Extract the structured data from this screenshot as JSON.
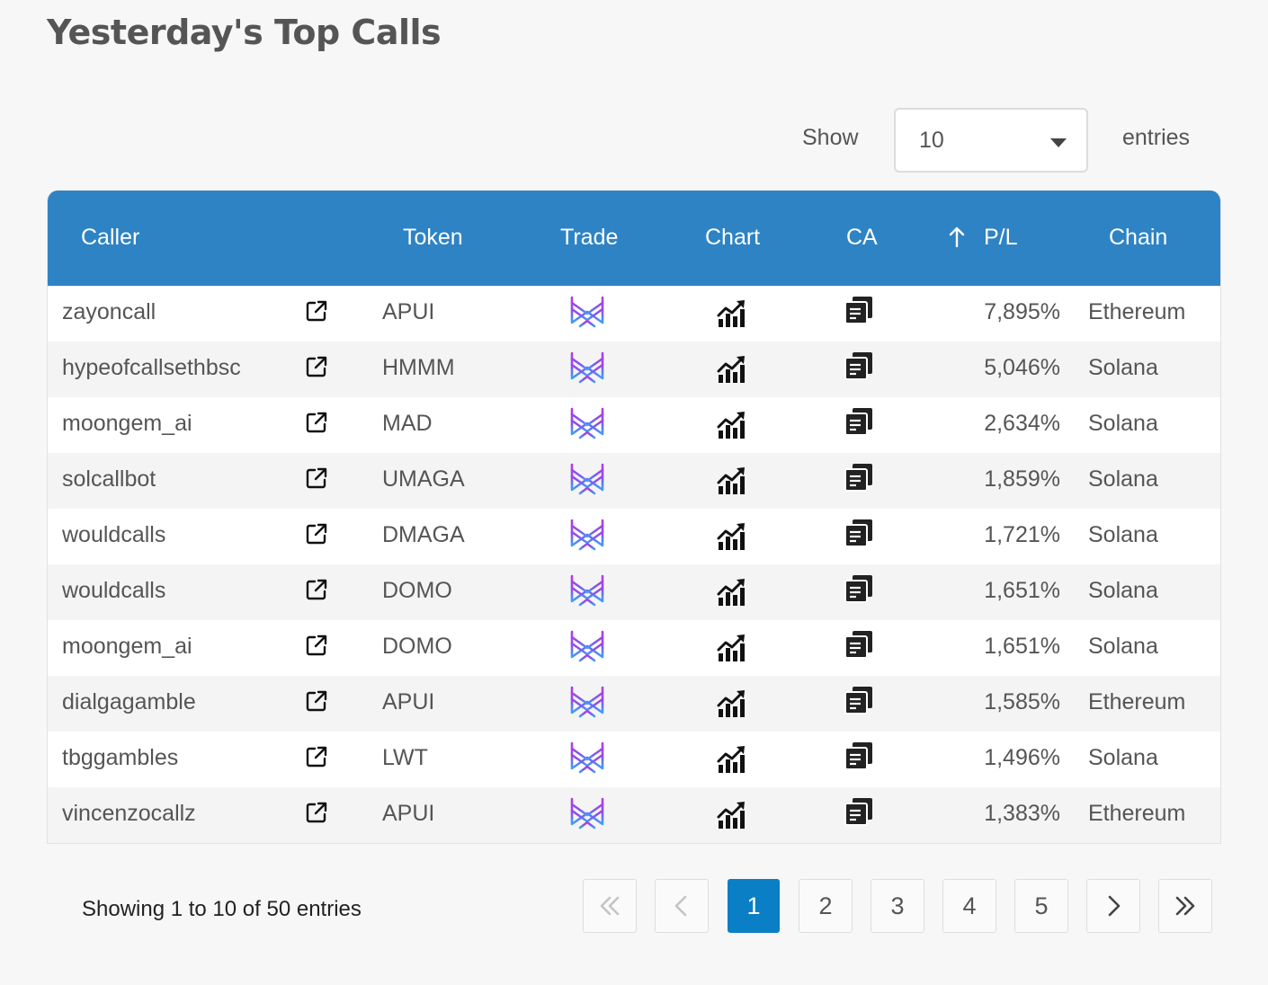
{
  "page": {
    "title": "Yesterday's Top Calls"
  },
  "length_control": {
    "show_label": "Show",
    "value": "10",
    "entries_label": "entries"
  },
  "table": {
    "headers": {
      "caller": "Caller",
      "token": "Token",
      "trade": "Trade",
      "chart": "Chart",
      "ca": "CA",
      "pl": "P/L",
      "chain": "Chain"
    },
    "sorted_column": "pl",
    "rows": [
      {
        "caller": "zayoncall",
        "token": "APUI",
        "pl": "7,895%",
        "chain": "Ethereum"
      },
      {
        "caller": "hypeofcallsethbsc",
        "token": "HMMM",
        "pl": "5,046%",
        "chain": "Solana"
      },
      {
        "caller": "moongem_ai",
        "token": "MAD",
        "pl": "2,634%",
        "chain": "Solana"
      },
      {
        "caller": "solcallbot",
        "token": "UMAGA",
        "pl": "1,859%",
        "chain": "Solana"
      },
      {
        "caller": "wouldcalls",
        "token": "DMAGA",
        "pl": "1,721%",
        "chain": "Solana"
      },
      {
        "caller": "wouldcalls",
        "token": "DOMO",
        "pl": "1,651%",
        "chain": "Solana"
      },
      {
        "caller": "moongem_ai",
        "token": "DOMO",
        "pl": "1,651%",
        "chain": "Solana"
      },
      {
        "caller": "dialgagamble",
        "token": "APUI",
        "pl": "1,585%",
        "chain": "Ethereum"
      },
      {
        "caller": "tbggambles",
        "token": "LWT",
        "pl": "1,496%",
        "chain": "Solana"
      },
      {
        "caller": "vincenzocallz",
        "token": "APUI",
        "pl": "1,383%",
        "chain": "Ethereum"
      }
    ],
    "icons": {
      "caller_link": "external-link-icon",
      "trade": "trade-logo-icon",
      "chart": "chart-up-icon",
      "ca": "copy-icon"
    }
  },
  "footer": {
    "info": "Showing 1 to 10 of 50 entries",
    "pages": [
      "1",
      "2",
      "3",
      "4",
      "5"
    ],
    "current_page": "1"
  },
  "colors": {
    "header_bg": "#2e83c4",
    "active_page": "#0a7fc6"
  }
}
